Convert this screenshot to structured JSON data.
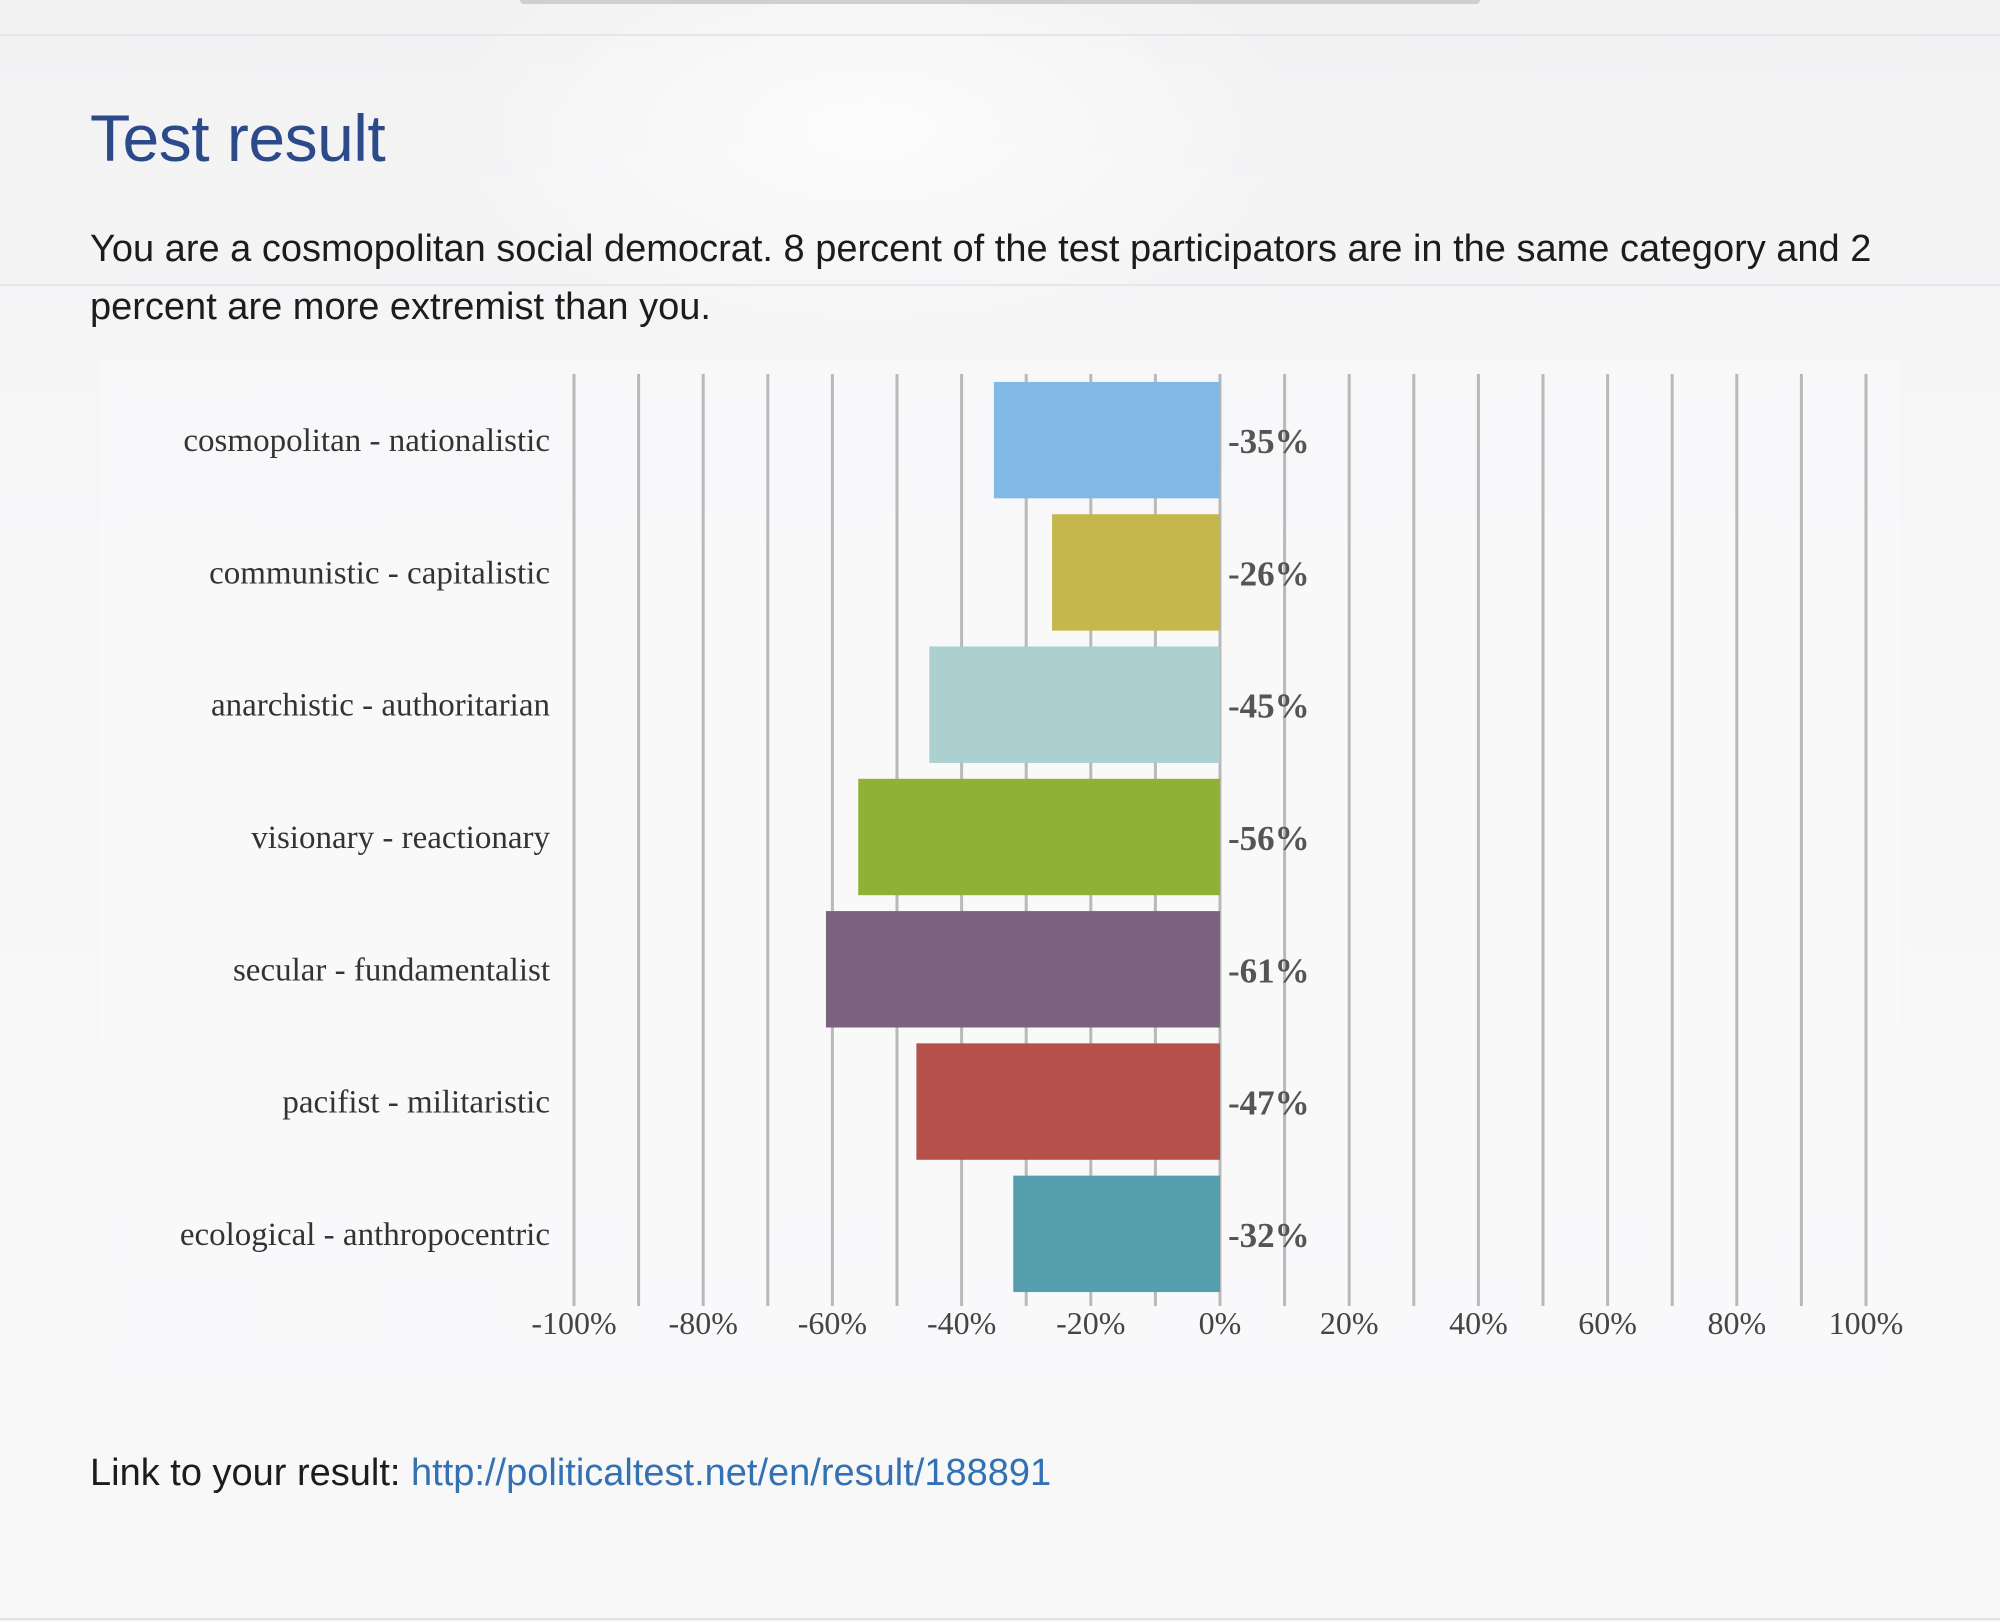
{
  "page": {
    "title": "Test result",
    "result_text": "You are a cosmopolitan social democrat. 8 percent of the test participators are in the same category and 2 percent are more extremist than you.",
    "link_label": "Link to your result:",
    "link_url": "http://politicaltest.net/en/result/188891"
  },
  "chart_data": {
    "type": "bar",
    "orientation": "horizontal",
    "categories": [
      "cosmopolitan - nationalistic",
      "communistic - capitalistic",
      "anarchistic - authoritarian",
      "visionary - reactionary",
      "secular - fundamentalist",
      "pacifist - militaristic",
      "ecological - anthropocentric"
    ],
    "values": [
      -35,
      -26,
      -45,
      -56,
      -61,
      -47,
      -32
    ],
    "value_labels": [
      "-35%",
      "-26%",
      "-45%",
      "-56%",
      "-61%",
      "-47%",
      "-32%"
    ],
    "colors": [
      "#80b9e5",
      "#c6b74c",
      "#acd0cf",
      "#8fb236",
      "#7b6380",
      "#b5504a",
      "#559ead"
    ],
    "xlim": [
      -100,
      100
    ],
    "xticks": [
      -100,
      -80,
      -60,
      -40,
      -20,
      0,
      20,
      40,
      60,
      80,
      100
    ],
    "xtick_labels": [
      "-100%",
      "-80%",
      "-60%",
      "-40%",
      "-20%",
      "0%",
      "20%",
      "40%",
      "60%",
      "80%",
      "100%"
    ],
    "grid": true,
    "grid_step": 10,
    "grid_color": "#b9b9b9"
  }
}
